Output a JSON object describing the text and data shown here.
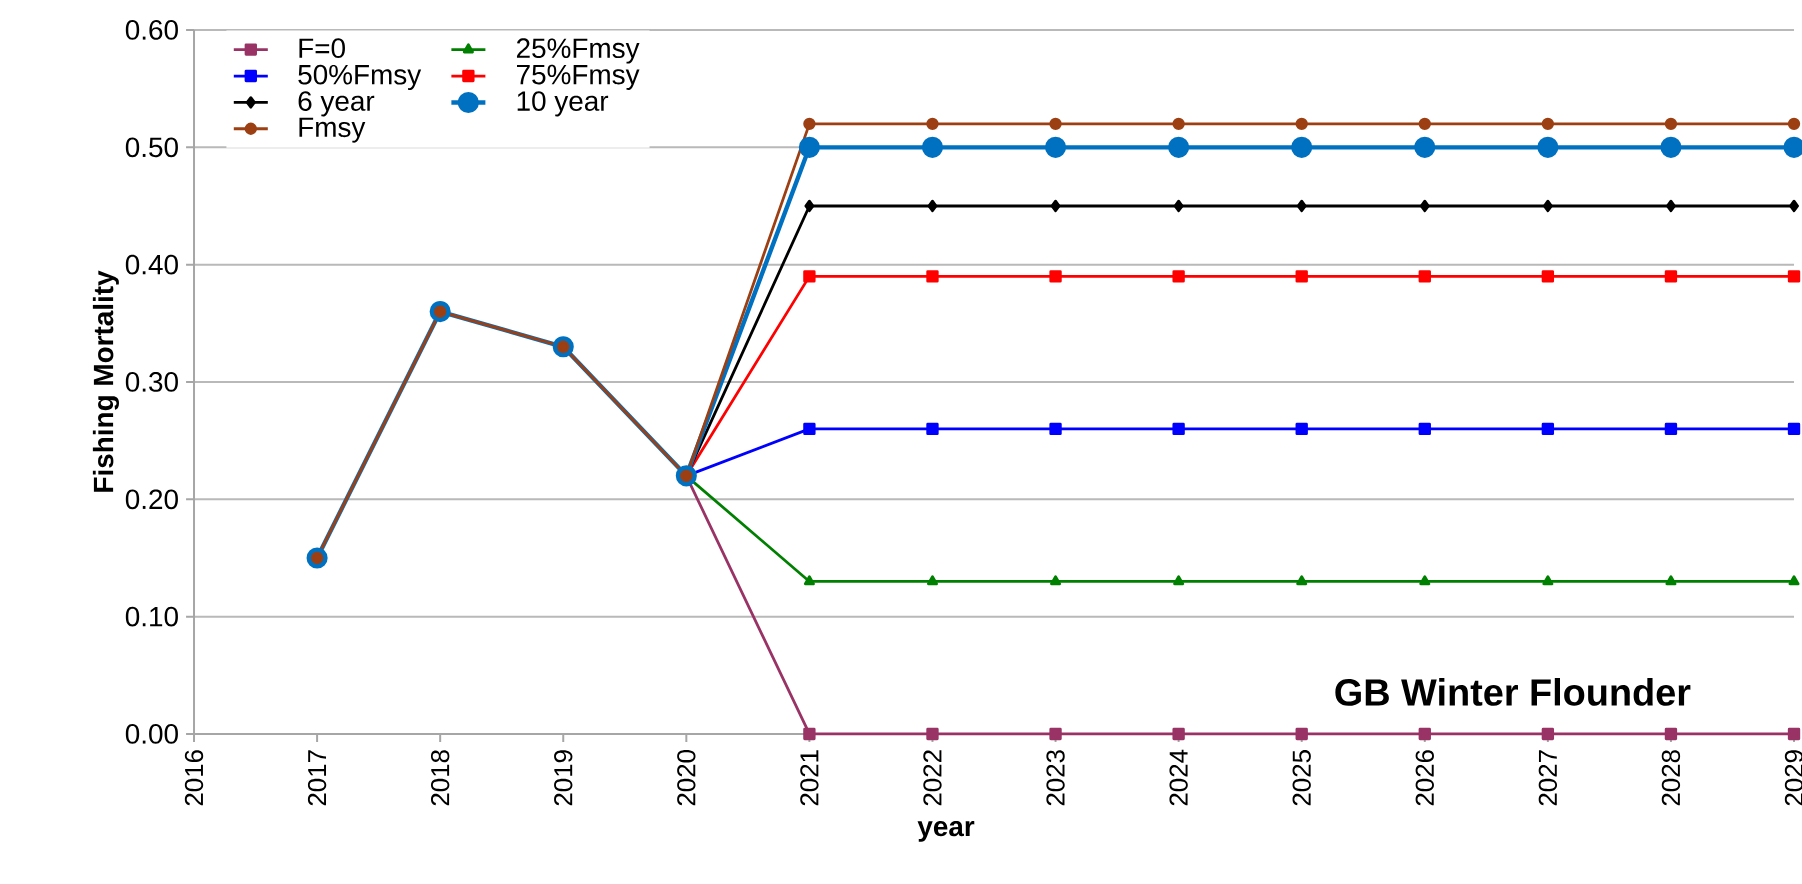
{
  "chart_data": {
    "type": "line",
    "xlabel": "year",
    "ylabel": "Fishing Mortality",
    "x": [
      2017,
      2018,
      2019,
      2020,
      2021,
      2022,
      2023,
      2024,
      2025,
      2026,
      2027,
      2028,
      2029
    ],
    "series": [
      {
        "name": "F=0",
        "color": "#993366",
        "marker": "square",
        "values": [
          null,
          null,
          null,
          0.22,
          0,
          0,
          0,
          0,
          0,
          0,
          0,
          0,
          0
        ]
      },
      {
        "name": "25%Fmsy",
        "color": "#008000",
        "marker": "triangle",
        "values": [
          null,
          null,
          null,
          0.22,
          0.13,
          0.13,
          0.13,
          0.13,
          0.13,
          0.13,
          0.13,
          0.13,
          0.13
        ]
      },
      {
        "name": "50%Fmsy",
        "color": "#0000ff",
        "marker": "square",
        "values": [
          null,
          null,
          null,
          0.22,
          0.26,
          0.26,
          0.26,
          0.26,
          0.26,
          0.26,
          0.26,
          0.26,
          0.26
        ]
      },
      {
        "name": "75%Fmsy",
        "color": "#ff0000",
        "marker": "square",
        "values": [
          null,
          null,
          null,
          0.22,
          0.39,
          0.39,
          0.39,
          0.39,
          0.39,
          0.39,
          0.39,
          0.39,
          0.39
        ]
      },
      {
        "name": "6 year",
        "color": "#000000",
        "marker": "diamond",
        "values": [
          null,
          null,
          null,
          0.22,
          0.45,
          0.45,
          0.45,
          0.45,
          0.45,
          0.45,
          0.45,
          0.45,
          0.45
        ]
      },
      {
        "name": "10 year",
        "color": "#0070c0",
        "marker": "circle",
        "values": [
          0.15,
          0.36,
          0.33,
          0.22,
          0.5,
          0.5,
          0.5,
          0.5,
          0.5,
          0.5,
          0.5,
          0.5,
          0.5
        ]
      },
      {
        "name": "Fmsy",
        "color": "#9c3f12",
        "marker": "circle",
        "values": [
          0.15,
          0.36,
          0.33,
          0.22,
          0.52,
          0.52,
          0.52,
          0.52,
          0.52,
          0.52,
          0.52,
          0.52,
          0.52
        ]
      }
    ],
    "xlim": [
      2016,
      2029
    ],
    "xticks": [
      2016,
      2017,
      2018,
      2019,
      2020,
      2021,
      2022,
      2023,
      2024,
      2025,
      2026,
      2027,
      2028,
      2029
    ],
    "ylim": [
      0,
      0.6
    ],
    "yticks": [
      {
        "value": 0,
        "label": "0.00"
      },
      {
        "value": 0.1,
        "label": "0.10"
      },
      {
        "value": 0.2,
        "label": "0.20"
      },
      {
        "value": 0.3,
        "label": "0.30"
      },
      {
        "value": 0.4,
        "label": "0.40"
      },
      {
        "value": 0.5,
        "label": "0.50"
      },
      {
        "value": 0.6,
        "label": "0.60"
      }
    ],
    "grid": "y",
    "legend": "top left",
    "line_style": "solid",
    "annotations": [
      "GB Winter Flounder"
    ]
  }
}
